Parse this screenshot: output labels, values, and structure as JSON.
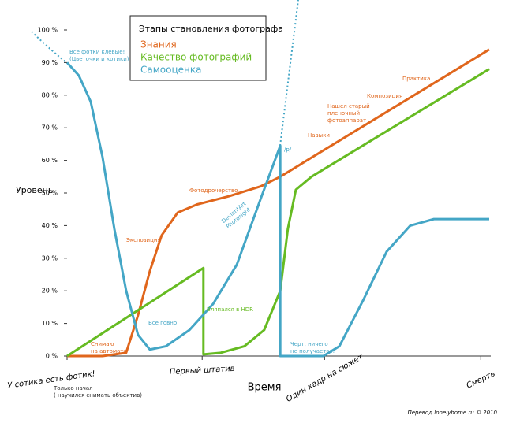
{
  "chart_data": {
    "type": "line",
    "title": "Этапы становления фотографа",
    "xlabel": "Время",
    "ylabel": "Уровень",
    "xlim": [
      0,
      100
    ],
    "ylim": [
      0,
      100
    ],
    "xticks": [
      {
        "value": 0,
        "label": "У сотика есть фотик!"
      },
      {
        "value": 32,
        "label": "Первый штатив"
      },
      {
        "value": 61,
        "label": "Один кадр на сюжет"
      },
      {
        "value": 98,
        "label": "Смерть"
      }
    ],
    "yticks": [
      {
        "value": 0,
        "label": "0 %"
      },
      {
        "value": 10,
        "label": "10 %"
      },
      {
        "value": 20,
        "label": "20 %"
      },
      {
        "value": 30,
        "label": "30 %"
      },
      {
        "value": 40,
        "label": "40 %"
      },
      {
        "value": 50,
        "label": "50 %"
      },
      {
        "value": 60,
        "label": "60 %"
      },
      {
        "value": 70,
        "label": "70 %"
      },
      {
        "value": 80,
        "label": "80 %"
      },
      {
        "value": 90,
        "label": "90 %"
      },
      {
        "value": 100,
        "label": "100 %"
      }
    ],
    "series": [
      {
        "name": "Знания",
        "color": "#e0661c",
        "x": [
          0,
          8.4,
          14,
          16.8,
          19.6,
          22.4,
          26.2,
          30.8,
          38.3,
          45.8,
          50.5,
          100
        ],
        "values": [
          0,
          0,
          1,
          12.5,
          26,
          37,
          44,
          46.5,
          49,
          52,
          55,
          94
        ]
      },
      {
        "name": "Качество фотографий",
        "color": "#66bb22",
        "x": [
          0,
          32.3,
          32.3,
          36.4,
          42,
          46.7,
          50.5,
          52.3,
          54.2,
          57.9,
          100
        ],
        "values": [
          0,
          27,
          0.5,
          1,
          3,
          8,
          20,
          39,
          51,
          55,
          88
        ]
      },
      {
        "name": "Самооценка",
        "color": "#44a6c6",
        "x": [
          0,
          2.8,
          5.6,
          8.4,
          11.2,
          14,
          16.8,
          19.6,
          23.4,
          29,
          34.6,
          40.2,
          45.8,
          50.5,
          50.5,
          60.7,
          64.5,
          70.1,
          75.7,
          81.3,
          86.9,
          100
        ],
        "values": [
          90,
          86,
          78,
          61,
          39,
          20,
          6.5,
          2,
          3,
          8,
          16,
          28,
          48,
          64.5,
          0,
          0,
          3,
          17,
          32,
          40,
          42,
          42
        ]
      }
    ],
    "annotations": [
      [
        "Все фотки клевые!",
        "(Цветочки и котики)"
      ],
      [
        "Фотодрочерство"
      ],
      [
        "Экспозиция"
      ],
      [
        "Снимаю",
        "на автомате"
      ],
      [
        "Все говно!"
      ],
      [
        "DeviantArt",
        "Photosight"
      ],
      [
        "Вляпался в HDR"
      ],
      [
        "/p/"
      ],
      [
        "Черт, ничего",
        "не получается!"
      ],
      [
        "Навыки"
      ],
      [
        "Нашел старый",
        "пленочный",
        "фотоаппарат"
      ],
      [
        "Композиция"
      ],
      [
        "Практика"
      ],
      [
        "Только начал",
        "( научился снимать объектив)"
      ]
    ],
    "credit": "Перевод lonelyhome.ru © 2010"
  }
}
